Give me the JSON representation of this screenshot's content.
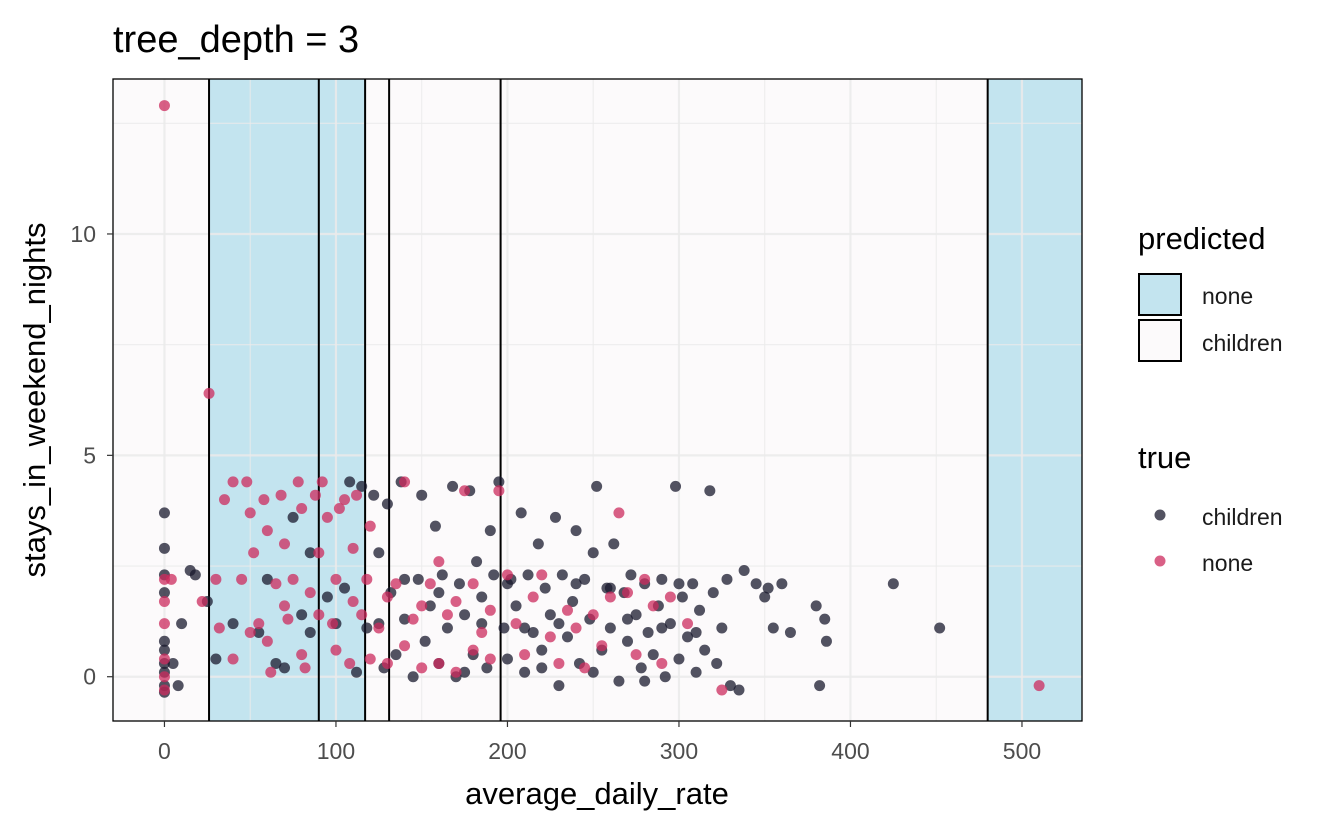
{
  "chart_data": {
    "type": "scatter",
    "title": "tree_depth = 3",
    "xlabel": "average_daily_rate",
    "ylabel": "stays_in_weekend_nights",
    "xlim": [
      -30,
      535
    ],
    "ylim": [
      -1,
      13.5
    ],
    "x_ticks": [
      "0",
      "100",
      "200",
      "300",
      "400",
      "500"
    ],
    "y_ticks": [
      "0",
      "5",
      "10"
    ],
    "grid": true,
    "background_colors": {
      "children": "#fcfafb",
      "none": "#c3e4ef"
    },
    "regions": [
      {
        "x_start": -30,
        "x_end": 26,
        "predicted": "children"
      },
      {
        "x_start": 26,
        "x_end": 90,
        "predicted": "none"
      },
      {
        "x_start": 90,
        "x_end": 117,
        "predicted": "none"
      },
      {
        "x_start": 117,
        "x_end": 131,
        "predicted": "children"
      },
      {
        "x_start": 131,
        "x_end": 196,
        "predicted": "children"
      },
      {
        "x_start": 196,
        "x_end": 480,
        "predicted": "children"
      },
      {
        "x_start": 480,
        "x_end": 535,
        "predicted": "none"
      }
    ],
    "split_lines": [
      26,
      90,
      117,
      131,
      196,
      480
    ],
    "legend_fill": {
      "title": "predicted",
      "entries": [
        {
          "label": "none",
          "color": "#c3e4ef"
        },
        {
          "label": "children",
          "color": "#fcfafb"
        }
      ]
    },
    "legend_color": {
      "title": "true",
      "entries": [
        {
          "label": "children",
          "color": "#1a1a2e"
        },
        {
          "label": "none",
          "color": "#cc2b5e"
        }
      ]
    },
    "series": [
      {
        "name": "children",
        "color": "#1a1a2e",
        "points": [
          [
            0,
            3.7
          ],
          [
            0,
            2.9
          ],
          [
            0,
            2.3
          ],
          [
            0,
            0.8
          ],
          [
            0,
            0.6
          ],
          [
            0,
            0.3
          ],
          [
            0,
            0.1
          ],
          [
            0,
            -0.2
          ],
          [
            0,
            -0.35
          ],
          [
            0,
            1.9
          ],
          [
            5,
            0.3
          ],
          [
            8,
            -0.2
          ],
          [
            10,
            1.2
          ],
          [
            15,
            2.4
          ],
          [
            18,
            2.3
          ],
          [
            25,
            1.7
          ],
          [
            30,
            0.4
          ],
          [
            40,
            1.2
          ],
          [
            55,
            1.0
          ],
          [
            65,
            0.3
          ],
          [
            75,
            3.6
          ],
          [
            80,
            1.4
          ],
          [
            85,
            2.8
          ],
          [
            95,
            1.8
          ],
          [
            100,
            1.2
          ],
          [
            108,
            4.4
          ],
          [
            115,
            4.3
          ],
          [
            118,
            1.1
          ],
          [
            122,
            4.1
          ],
          [
            125,
            2.8
          ],
          [
            128,
            0.2
          ],
          [
            130,
            3.9
          ],
          [
            132,
            1.9
          ],
          [
            135,
            0.5
          ],
          [
            138,
            4.4
          ],
          [
            140,
            1.3
          ],
          [
            145,
            0.0
          ],
          [
            148,
            2.2
          ],
          [
            150,
            4.1
          ],
          [
            152,
            0.8
          ],
          [
            155,
            1.6
          ],
          [
            158,
            3.4
          ],
          [
            160,
            0.3
          ],
          [
            162,
            2.3
          ],
          [
            165,
            1.1
          ],
          [
            168,
            4.3
          ],
          [
            170,
            0.0
          ],
          [
            172,
            2.1
          ],
          [
            175,
            1.4
          ],
          [
            178,
            4.2
          ],
          [
            180,
            0.5
          ],
          [
            182,
            2.6
          ],
          [
            185,
            1.8
          ],
          [
            188,
            0.2
          ],
          [
            190,
            3.3
          ],
          [
            192,
            2.3
          ],
          [
            195,
            4.4
          ],
          [
            198,
            1.1
          ],
          [
            200,
            0.4
          ],
          [
            202,
            2.2
          ],
          [
            205,
            1.6
          ],
          [
            208,
            3.7
          ],
          [
            210,
            0.1
          ],
          [
            212,
            2.3
          ],
          [
            215,
            1.0
          ],
          [
            218,
            3.0
          ],
          [
            220,
            0.6
          ],
          [
            222,
            2.0
          ],
          [
            225,
            1.4
          ],
          [
            228,
            3.6
          ],
          [
            230,
            -0.2
          ],
          [
            232,
            2.3
          ],
          [
            235,
            0.9
          ],
          [
            238,
            1.7
          ],
          [
            240,
            3.3
          ],
          [
            242,
            0.3
          ],
          [
            245,
            2.2
          ],
          [
            248,
            1.3
          ],
          [
            250,
            2.8
          ],
          [
            252,
            4.3
          ],
          [
            255,
            0.6
          ],
          [
            258,
            2.0
          ],
          [
            260,
            1.1
          ],
          [
            262,
            3.0
          ],
          [
            265,
            -0.1
          ],
          [
            268,
            1.9
          ],
          [
            270,
            0.8
          ],
          [
            272,
            2.3
          ],
          [
            275,
            1.4
          ],
          [
            278,
            0.2
          ],
          [
            280,
            2.1
          ],
          [
            282,
            1.0
          ],
          [
            285,
            0.5
          ],
          [
            288,
            1.6
          ],
          [
            290,
            2.2
          ],
          [
            292,
            0.0
          ],
          [
            295,
            1.2
          ],
          [
            298,
            4.3
          ],
          [
            300,
            0.4
          ],
          [
            302,
            1.8
          ],
          [
            305,
            0.9
          ],
          [
            308,
            2.1
          ],
          [
            310,
            0.1
          ],
          [
            312,
            1.5
          ],
          [
            315,
            0.6
          ],
          [
            318,
            4.2
          ],
          [
            320,
            1.9
          ],
          [
            322,
            0.3
          ],
          [
            325,
            1.1
          ],
          [
            328,
            2.2
          ],
          [
            330,
            -0.2
          ],
          [
            335,
            -0.3
          ],
          [
            338,
            2.4
          ],
          [
            345,
            2.1
          ],
          [
            350,
            1.8
          ],
          [
            352,
            2.0
          ],
          [
            355,
            1.1
          ],
          [
            360,
            2.1
          ],
          [
            365,
            1.0
          ],
          [
            380,
            1.6
          ],
          [
            382,
            -0.2
          ],
          [
            385,
            1.3
          ],
          [
            386,
            0.8
          ],
          [
            425,
            2.1
          ],
          [
            452,
            1.1
          ],
          [
            60,
            2.2
          ],
          [
            70,
            0.2
          ],
          [
            85,
            1.0
          ],
          [
            105,
            2.0
          ],
          [
            112,
            0.1
          ],
          [
            125,
            1.2
          ],
          [
            140,
            2.2
          ],
          [
            160,
            1.9
          ],
          [
            175,
            0.1
          ],
          [
            185,
            1.2
          ],
          [
            200,
            2.1
          ],
          [
            210,
            1.1
          ],
          [
            220,
            0.2
          ],
          [
            230,
            1.2
          ],
          [
            240,
            2.1
          ],
          [
            250,
            0.1
          ],
          [
            260,
            2.0
          ],
          [
            270,
            1.3
          ],
          [
            280,
            -0.1
          ],
          [
            290,
            1.1
          ],
          [
            300,
            2.1
          ],
          [
            310,
            1.0
          ]
        ]
      },
      {
        "name": "none",
        "color": "#cc2b5e",
        "points": [
          [
            0,
            12.9
          ],
          [
            0,
            2.2
          ],
          [
            0,
            1.7
          ],
          [
            0,
            1.2
          ],
          [
            0,
            0.4
          ],
          [
            0,
            0.0
          ],
          [
            0,
            -0.3
          ],
          [
            4,
            2.2
          ],
          [
            22,
            1.7
          ],
          [
            26,
            6.4
          ],
          [
            30,
            2.2
          ],
          [
            32,
            1.1
          ],
          [
            35,
            4.0
          ],
          [
            40,
            4.4
          ],
          [
            45,
            2.2
          ],
          [
            48,
            4.4
          ],
          [
            50,
            3.7
          ],
          [
            52,
            2.8
          ],
          [
            55,
            1.2
          ],
          [
            58,
            4.0
          ],
          [
            60,
            3.3
          ],
          [
            62,
            0.1
          ],
          [
            65,
            2.1
          ],
          [
            68,
            4.1
          ],
          [
            70,
            3.0
          ],
          [
            72,
            1.3
          ],
          [
            75,
            2.2
          ],
          [
            78,
            4.4
          ],
          [
            80,
            3.8
          ],
          [
            82,
            0.2
          ],
          [
            85,
            1.9
          ],
          [
            88,
            4.1
          ],
          [
            90,
            2.8
          ],
          [
            92,
            4.4
          ],
          [
            95,
            3.6
          ],
          [
            98,
            1.2
          ],
          [
            100,
            2.2
          ],
          [
            102,
            3.8
          ],
          [
            105,
            4.0
          ],
          [
            108,
            0.3
          ],
          [
            110,
            2.9
          ],
          [
            112,
            4.1
          ],
          [
            115,
            1.4
          ],
          [
            118,
            2.2
          ],
          [
            120,
            3.4
          ],
          [
            125,
            1.1
          ],
          [
            130,
            0.3
          ],
          [
            135,
            2.1
          ],
          [
            140,
            4.4
          ],
          [
            145,
            1.3
          ],
          [
            150,
            0.2
          ],
          [
            155,
            2.1
          ],
          [
            160,
            2.6
          ],
          [
            165,
            1.4
          ],
          [
            170,
            0.1
          ],
          [
            175,
            4.2
          ],
          [
            180,
            2.1
          ],
          [
            185,
            1.0
          ],
          [
            190,
            0.4
          ],
          [
            195,
            4.2
          ],
          [
            200,
            2.3
          ],
          [
            205,
            1.2
          ],
          [
            210,
            0.5
          ],
          [
            215,
            1.8
          ],
          [
            220,
            2.3
          ],
          [
            225,
            0.9
          ],
          [
            230,
            0.3
          ],
          [
            235,
            1.5
          ],
          [
            240,
            1.1
          ],
          [
            245,
            0.2
          ],
          [
            250,
            1.4
          ],
          [
            255,
            0.7
          ],
          [
            260,
            1.8
          ],
          [
            265,
            3.7
          ],
          [
            270,
            1.9
          ],
          [
            275,
            0.5
          ],
          [
            280,
            2.2
          ],
          [
            285,
            1.6
          ],
          [
            290,
            0.3
          ],
          [
            295,
            1.8
          ],
          [
            305,
            1.2
          ],
          [
            325,
            -0.3
          ],
          [
            510,
            -0.2
          ],
          [
            40,
            0.4
          ],
          [
            50,
            1.0
          ],
          [
            60,
            0.8
          ],
          [
            70,
            1.6
          ],
          [
            80,
            0.5
          ],
          [
            90,
            1.4
          ],
          [
            100,
            0.6
          ],
          [
            110,
            1.7
          ],
          [
            120,
            0.4
          ],
          [
            130,
            1.8
          ],
          [
            140,
            0.7
          ],
          [
            150,
            1.6
          ],
          [
            160,
            0.3
          ],
          [
            170,
            1.7
          ],
          [
            180,
            0.6
          ],
          [
            190,
            1.5
          ]
        ]
      }
    ]
  }
}
